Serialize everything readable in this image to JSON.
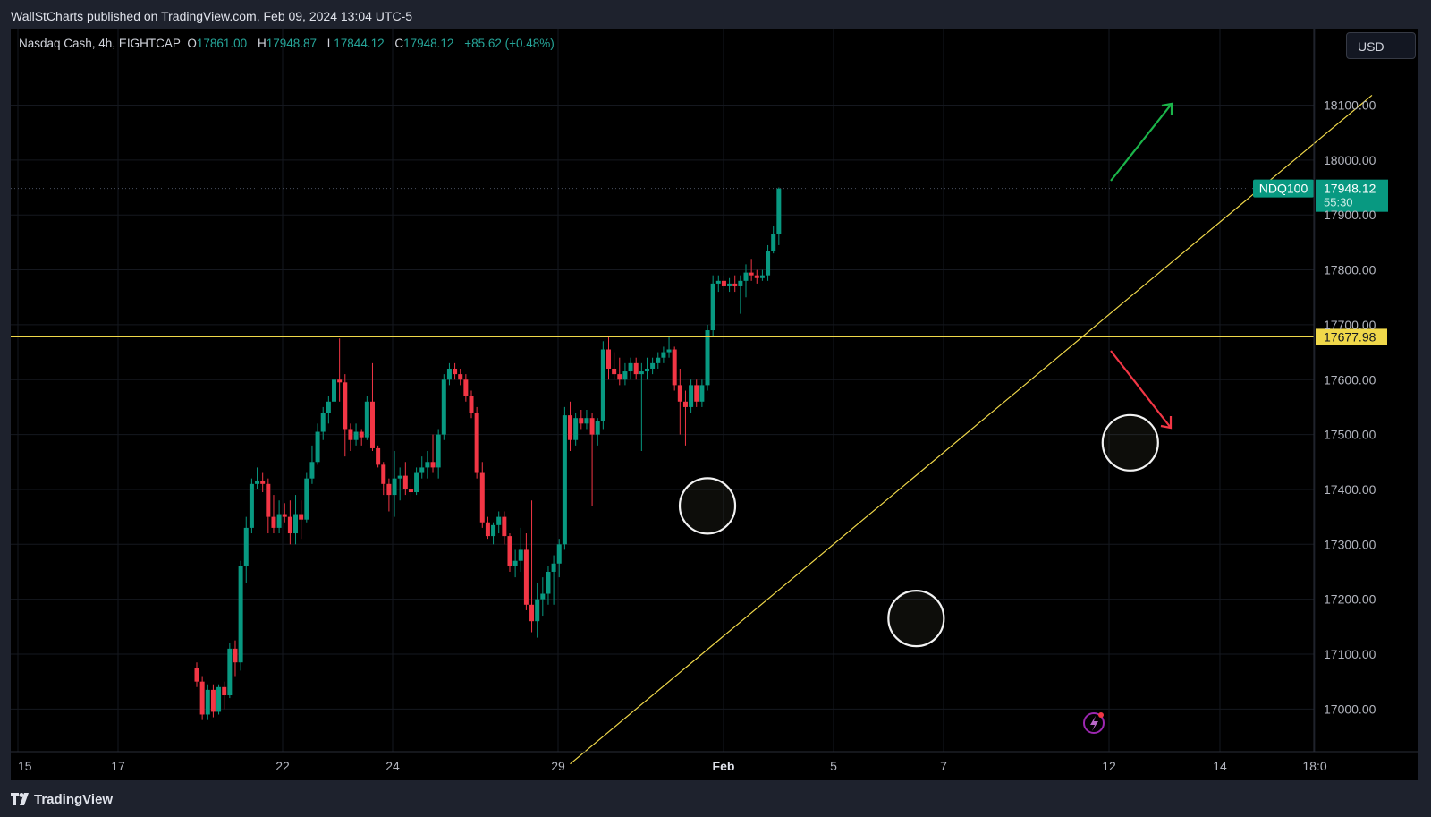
{
  "header": {
    "publisher_line": "WallStCharts published on TradingView.com, Feb 09, 2024 13:04 UTC-5"
  },
  "legend": {
    "symbol_line": "Nasdaq Cash, 4h, EIGHTCAP",
    "open_label": "O",
    "open_value": "17861.00",
    "high_label": "H",
    "high_value": "17948.87",
    "low_label": "L",
    "low_value": "17844.12",
    "close_label": "C",
    "close_value": "17948.12",
    "change": "+85.62 (+0.48%)"
  },
  "currency_button": "USD",
  "footer": {
    "brand": "TradingView"
  },
  "colors": {
    "up": "#089981",
    "down": "#f23645",
    "background": "#000000",
    "level_line": "#f0d84a",
    "arrow_up": "#1bb54a",
    "arrow_down": "#f23645"
  },
  "chart_data": {
    "type": "candlestick",
    "symbol": "NDQ100",
    "timeframe": "4h",
    "y_axis": {
      "ticks": [
        17000,
        17100,
        17200,
        17300,
        17400,
        17500,
        17600,
        17700,
        17800,
        17900,
        18000,
        18100
      ],
      "tick_labels": [
        "17000.00",
        "17100.00",
        "17200.00",
        "17300.00",
        "17400.00",
        "17500.00",
        "17600.00",
        "17700.00",
        "17800.00",
        "17900.00",
        "18000.00",
        "18100.00"
      ],
      "range": [
        16950,
        18220
      ]
    },
    "x_axis": {
      "tick_labels": [
        "15",
        "17",
        "22",
        "24",
        "29",
        "Feb",
        "5",
        "7",
        "12",
        "14",
        "18:0"
      ],
      "bold_label": "Feb"
    },
    "last_price": {
      "symbol_tag": "NDQ100",
      "value": "17948.12",
      "countdown": "55:30"
    },
    "horizontal_level": {
      "value": 17677.98,
      "label": "17677.98"
    },
    "trendline": {
      "from": {
        "candle": 68,
        "price": 16900
      },
      "to": {
        "candle": 214,
        "price": 18118
      }
    },
    "circles": [
      {
        "candle": 93,
        "price": 17370
      },
      {
        "candle": 131,
        "price": 17165
      },
      {
        "candle": 170,
        "price": 17485
      }
    ],
    "arrows": [
      {
        "direction": "up"
      },
      {
        "direction": "down"
      }
    ],
    "candles": [
      [
        17075,
        17085,
        17040,
        17050
      ],
      [
        17050,
        17060,
        16980,
        16990
      ],
      [
        16990,
        17045,
        16980,
        17035
      ],
      [
        17035,
        17045,
        16985,
        16995
      ],
      [
        16995,
        17045,
        16990,
        17040
      ],
      [
        17040,
        17050,
        17000,
        17025
      ],
      [
        17025,
        17120,
        17020,
        17110
      ],
      [
        17110,
        17125,
        17060,
        17085
      ],
      [
        17085,
        17270,
        17070,
        17260
      ],
      [
        17260,
        17350,
        17230,
        17330
      ],
      [
        17330,
        17420,
        17320,
        17410
      ],
      [
        17410,
        17440,
        17400,
        17415
      ],
      [
        17415,
        17430,
        17395,
        17410
      ],
      [
        17410,
        17420,
        17320,
        17350
      ],
      [
        17350,
        17390,
        17320,
        17330
      ],
      [
        17330,
        17380,
        17320,
        17355
      ],
      [
        17355,
        17375,
        17340,
        17350
      ],
      [
        17350,
        17380,
        17300,
        17320
      ],
      [
        17320,
        17390,
        17300,
        17355
      ],
      [
        17355,
        17380,
        17310,
        17345
      ],
      [
        17345,
        17430,
        17340,
        17420
      ],
      [
        17420,
        17480,
        17410,
        17450
      ],
      [
        17450,
        17520,
        17445,
        17505
      ],
      [
        17505,
        17550,
        17490,
        17540
      ],
      [
        17540,
        17570,
        17520,
        17560
      ],
      [
        17560,
        17620,
        17550,
        17600
      ],
      [
        17600,
        17675,
        17560,
        17595
      ],
      [
        17595,
        17610,
        17460,
        17510
      ],
      [
        17510,
        17520,
        17470,
        17490
      ],
      [
        17490,
        17520,
        17480,
        17505
      ],
      [
        17505,
        17510,
        17480,
        17495
      ],
      [
        17495,
        17570,
        17490,
        17560
      ],
      [
        17560,
        17630,
        17470,
        17475
      ],
      [
        17475,
        17480,
        17440,
        17445
      ],
      [
        17445,
        17450,
        17390,
        17410
      ],
      [
        17410,
        17420,
        17360,
        17390
      ],
      [
        17390,
        17470,
        17350,
        17420
      ],
      [
        17420,
        17440,
        17380,
        17425
      ],
      [
        17425,
        17450,
        17390,
        17400
      ],
      [
        17400,
        17420,
        17380,
        17395
      ],
      [
        17395,
        17440,
        17390,
        17430
      ],
      [
        17430,
        17460,
        17420,
        17440
      ],
      [
        17440,
        17470,
        17420,
        17450
      ],
      [
        17450,
        17500,
        17430,
        17440
      ],
      [
        17440,
        17510,
        17420,
        17500
      ],
      [
        17500,
        17610,
        17490,
        17600
      ],
      [
        17600,
        17630,
        17590,
        17620
      ],
      [
        17620,
        17630,
        17600,
        17610
      ],
      [
        17610,
        17620,
        17590,
        17600
      ],
      [
        17600,
        17610,
        17560,
        17570
      ],
      [
        17570,
        17580,
        17530,
        17540
      ],
      [
        17540,
        17550,
        17420,
        17430
      ],
      [
        17430,
        17450,
        17330,
        17340
      ],
      [
        17340,
        17350,
        17310,
        17315
      ],
      [
        17315,
        17340,
        17300,
        17335
      ],
      [
        17335,
        17360,
        17320,
        17350
      ],
      [
        17350,
        17360,
        17300,
        17315
      ],
      [
        17315,
        17320,
        17250,
        17260
      ],
      [
        17260,
        17290,
        17240,
        17270
      ],
      [
        17270,
        17330,
        17250,
        17290
      ],
      [
        17290,
        17320,
        17180,
        17190
      ],
      [
        17190,
        17380,
        17140,
        17160
      ],
      [
        17160,
        17230,
        17130,
        17200
      ],
      [
        17200,
        17240,
        17170,
        17210
      ],
      [
        17210,
        17260,
        17190,
        17250
      ],
      [
        17250,
        17280,
        17190,
        17265
      ],
      [
        17265,
        17310,
        17240,
        17300
      ],
      [
        17300,
        17550,
        17290,
        17535
      ],
      [
        17535,
        17560,
        17470,
        17490
      ],
      [
        17490,
        17540,
        17480,
        17530
      ],
      [
        17530,
        17545,
        17510,
        17520
      ],
      [
        17520,
        17545,
        17510,
        17530
      ],
      [
        17530,
        17540,
        17370,
        17500
      ],
      [
        17500,
        17530,
        17480,
        17525
      ],
      [
        17525,
        17670,
        17510,
        17655
      ],
      [
        17655,
        17680,
        17600,
        17620
      ],
      [
        17620,
        17650,
        17600,
        17610
      ],
      [
        17610,
        17640,
        17590,
        17600
      ],
      [
        17600,
        17630,
        17590,
        17615
      ],
      [
        17615,
        17640,
        17600,
        17630
      ],
      [
        17630,
        17640,
        17600,
        17610
      ],
      [
        17610,
        17630,
        17470,
        17615
      ],
      [
        17615,
        17640,
        17600,
        17620
      ],
      [
        17620,
        17640,
        17610,
        17630
      ],
      [
        17630,
        17650,
        17620,
        17640
      ],
      [
        17640,
        17660,
        17630,
        17650
      ],
      [
        17650,
        17680,
        17640,
        17655
      ],
      [
        17655,
        17660,
        17580,
        17590
      ],
      [
        17590,
        17620,
        17500,
        17560
      ],
      [
        17560,
        17580,
        17480,
        17550
      ],
      [
        17550,
        17600,
        17540,
        17590
      ],
      [
        17590,
        17600,
        17550,
        17560
      ],
      [
        17560,
        17600,
        17550,
        17590
      ],
      [
        17590,
        17700,
        17580,
        17690
      ],
      [
        17690,
        17790,
        17680,
        17775
      ],
      [
        17775,
        17790,
        17760,
        17780
      ],
      [
        17780,
        17790,
        17765,
        17770
      ],
      [
        17770,
        17785,
        17760,
        17775
      ],
      [
        17775,
        17790,
        17760,
        17770
      ],
      [
        17770,
        17790,
        17720,
        17780
      ],
      [
        17780,
        17810,
        17750,
        17795
      ],
      [
        17795,
        17820,
        17780,
        17790
      ],
      [
        17790,
        17800,
        17775,
        17785
      ],
      [
        17785,
        17800,
        17780,
        17790
      ],
      [
        17790,
        17845,
        17780,
        17835
      ],
      [
        17835,
        17880,
        17830,
        17865
      ],
      [
        17865,
        17950,
        17845,
        17948
      ]
    ]
  }
}
